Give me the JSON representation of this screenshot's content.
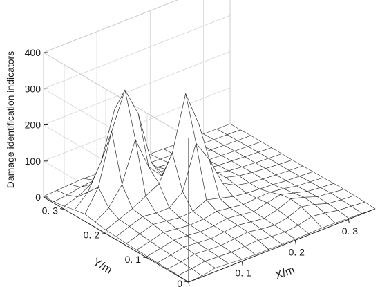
{
  "chart_data": {
    "type": "surface",
    "title": "",
    "xlabel": "X/m",
    "ylabel": "Y/m",
    "zlabel": "Damage identification indicators",
    "xlim": [
      0,
      0.35
    ],
    "ylim": [
      0,
      0.35
    ],
    "zlim": [
      0,
      400
    ],
    "x_ticks": [
      "0",
      "0. 1",
      "0. 2",
      "0. 3"
    ],
    "x_tick_values": [
      0,
      0.1,
      0.2,
      0.3
    ],
    "y_ticks": [
      "0",
      "0. 1",
      "0. 2",
      "0. 3"
    ],
    "y_tick_values": [
      0,
      0.1,
      0.2,
      0.3
    ],
    "z_ticks": [
      "0",
      "100",
      "200",
      "300",
      "400"
    ],
    "z_tick_values": [
      0,
      100,
      200,
      300,
      400
    ],
    "grid": true,
    "x": [
      0,
      0.025,
      0.05,
      0.075,
      0.1,
      0.125,
      0.15,
      0.175,
      0.2,
      0.225,
      0.25,
      0.275,
      0.3,
      0.325,
      0.35
    ],
    "y": [
      0,
      0.025,
      0.05,
      0.075,
      0.1,
      0.125,
      0.15,
      0.175,
      0.2,
      0.225,
      0.25,
      0.275,
      0.3,
      0.325,
      0.35
    ],
    "z_rows_by_y": [
      [
        0,
        3,
        10,
        8,
        5,
        4,
        4,
        3,
        3,
        4,
        5,
        4,
        3,
        2,
        0
      ],
      [
        2,
        6,
        12,
        10,
        8,
        10,
        12,
        8,
        6,
        10,
        20,
        15,
        8,
        5,
        2
      ],
      [
        3,
        8,
        15,
        12,
        10,
        14,
        18,
        12,
        8,
        15,
        30,
        22,
        10,
        6,
        3
      ],
      [
        3,
        10,
        18,
        15,
        12,
        16,
        20,
        15,
        10,
        20,
        35,
        25,
        12,
        8,
        4
      ],
      [
        4,
        12,
        20,
        18,
        14,
        16,
        22,
        18,
        12,
        22,
        30,
        20,
        10,
        6,
        3
      ],
      [
        5,
        15,
        25,
        20,
        16,
        18,
        25,
        20,
        15,
        18,
        20,
        15,
        8,
        5,
        2
      ],
      [
        6,
        18,
        30,
        25,
        20,
        22,
        40,
        30,
        20,
        15,
        12,
        10,
        6,
        4,
        2
      ],
      [
        8,
        22,
        35,
        30,
        30,
        60,
        180,
        120,
        40,
        20,
        12,
        8,
        5,
        3,
        1
      ],
      [
        10,
        25,
        40,
        60,
        80,
        150,
        300,
        200,
        60,
        25,
        15,
        10,
        6,
        3,
        1
      ],
      [
        15,
        40,
        90,
        200,
        110,
        70,
        80,
        60,
        30,
        20,
        12,
        8,
        5,
        3,
        1
      ],
      [
        20,
        80,
        220,
        320,
        240,
        90,
        40,
        30,
        20,
        15,
        10,
        8,
        5,
        3,
        1
      ],
      [
        15,
        50,
        120,
        250,
        90,
        40,
        30,
        25,
        15,
        10,
        8,
        6,
        4,
        2,
        1
      ],
      [
        8,
        20,
        40,
        60,
        30,
        20,
        20,
        15,
        10,
        8,
        6,
        5,
        3,
        2,
        1
      ],
      [
        4,
        8,
        15,
        20,
        12,
        10,
        10,
        8,
        6,
        5,
        4,
        3,
        2,
        1,
        0
      ],
      [
        2,
        4,
        6,
        8,
        6,
        5,
        5,
        4,
        3,
        3,
        2,
        2,
        1,
        0,
        0
      ]
    ]
  }
}
